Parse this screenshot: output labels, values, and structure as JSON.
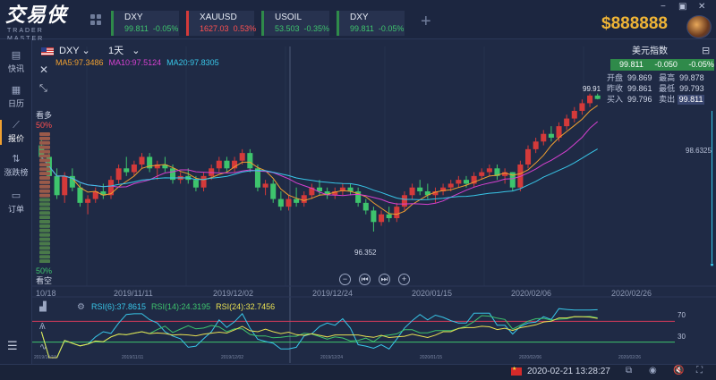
{
  "app": {
    "logo_cn": "交易侠",
    "logo_en": "TRADER MASTER",
    "balance": "$888888"
  },
  "tickers": [
    {
      "symbol": "DXY",
      "price": "99.811",
      "change": "-0.05%",
      "dir": "down_green"
    },
    {
      "symbol": "XAUUSD",
      "price": "1627.03",
      "change": "0.53%",
      "dir": "up_red"
    },
    {
      "symbol": "USOIL",
      "price": "53.503",
      "change": "-0.35%",
      "dir": "down_green"
    },
    {
      "symbol": "DXY",
      "price": "99.811",
      "change": "-0.05%",
      "dir": "down_green"
    }
  ],
  "window_controls": {
    "minimize": "−",
    "restore": "▣",
    "close": "✕"
  },
  "sidebar": {
    "items": [
      {
        "label": "快讯",
        "icon": "news-icon"
      },
      {
        "label": "日历",
        "icon": "calendar-icon"
      },
      {
        "label": "报价",
        "icon": "quotes-icon"
      },
      {
        "label": "涨跌榜",
        "icon": "ranking-icon"
      },
      {
        "label": "订单",
        "icon": "orders-icon"
      }
    ]
  },
  "chart_header": {
    "symbol": "DXY",
    "period": "1天",
    "ma5": "MA5:97.3486",
    "ma10": "MA10:97.5124",
    "ma20": "MA20:97.8305"
  },
  "sentiment": {
    "bull_label": "看多",
    "bull_pct": "50%",
    "bear_label": "看空",
    "bear_pct": "50%",
    "bull_value": 50,
    "bear_value": 50
  },
  "quote_panel": {
    "title": "美元指数",
    "bid": "99.811",
    "change": "-0.050",
    "change_pct": "-0.05%",
    "open_label": "开盘",
    "open": "99.869",
    "high_label": "最高",
    "high": "99.878",
    "prev_close_label": "昨收",
    "prev_close": "99.861",
    "low_label": "最低",
    "low": "99.793",
    "buy_label": "买入",
    "buy": "99.796",
    "sell_label": "卖出",
    "sell": "99.811"
  },
  "price_labels": {
    "last": "99.91",
    "right_axis": "98.6325",
    "low_marker": "96.352"
  },
  "date_axis": [
    "10/18",
    "2019/11/11",
    "2019/12/02",
    "2019/12/24",
    "2020/01/15",
    "2020/02/06",
    "2020/02/26"
  ],
  "rsi": {
    "rsi6": "RSI(6):37.8615",
    "rsi14": "RSI(14):24.3195",
    "rsi24": "RSI(24):32.7456",
    "upper": "70",
    "lower": "30"
  },
  "mini_dates": [
    "2019/10/18",
    "2019/11/11",
    "2019/12/02",
    "2019/12/24",
    "2020/01/15",
    "2020/02/06",
    "2020/02/26"
  ],
  "status": {
    "timestamp": "2020-02-21 13:28:27"
  },
  "colors": {
    "background": "#1f2a45",
    "up": "#d43a3a",
    "down": "#3ec46d",
    "ma5": "#f0a030",
    "ma10": "#d640d0",
    "ma20": "#38c6e8",
    "balance": "#f0b536"
  },
  "chart_data": {
    "type": "candlestick",
    "symbol": "DXY",
    "period": "1天",
    "yrange": [
      96.0,
      100.2
    ],
    "ohlc": [
      [
        98.6,
        98.8,
        98.2,
        98.3
      ],
      [
        98.3,
        98.4,
        97.7,
        97.8
      ],
      [
        97.8,
        98.0,
        97.2,
        97.3
      ],
      [
        97.3,
        97.9,
        97.1,
        97.8
      ],
      [
        97.8,
        98.0,
        97.4,
        97.5
      ],
      [
        97.5,
        97.6,
        97.0,
        97.1
      ],
      [
        97.1,
        97.3,
        96.8,
        97.2
      ],
      [
        97.2,
        97.5,
        97.1,
        97.4
      ],
      [
        97.4,
        97.6,
        97.2,
        97.3
      ],
      [
        97.3,
        97.8,
        97.2,
        97.7
      ],
      [
        97.7,
        98.1,
        97.6,
        98.0
      ],
      [
        98.0,
        98.3,
        97.8,
        97.9
      ],
      [
        97.9,
        98.2,
        97.8,
        98.1
      ],
      [
        98.1,
        98.4,
        98.0,
        98.3
      ],
      [
        98.3,
        98.4,
        97.9,
        98.0
      ],
      [
        98.0,
        98.2,
        97.7,
        98.1
      ],
      [
        98.1,
        98.3,
        97.9,
        98.0
      ],
      [
        98.0,
        98.1,
        97.6,
        97.7
      ],
      [
        97.7,
        97.9,
        97.6,
        97.8
      ],
      [
        97.8,
        98.0,
        97.6,
        97.7
      ],
      [
        97.7,
        97.8,
        97.4,
        97.5
      ],
      [
        97.5,
        97.9,
        97.4,
        97.8
      ],
      [
        97.8,
        98.1,
        97.7,
        98.0
      ],
      [
        98.0,
        98.3,
        97.9,
        98.2
      ],
      [
        98.2,
        98.3,
        97.9,
        98.0
      ],
      [
        98.0,
        98.3,
        97.9,
        98.2
      ],
      [
        98.2,
        98.5,
        98.1,
        98.4
      ],
      [
        98.4,
        98.5,
        97.9,
        98.0
      ],
      [
        98.0,
        98.1,
        97.4,
        97.5
      ],
      [
        97.5,
        97.7,
        97.3,
        97.6
      ],
      [
        97.6,
        97.7,
        97.1,
        97.2
      ],
      [
        97.2,
        97.4,
        96.9,
        97.0
      ],
      [
        97.0,
        97.3,
        96.9,
        97.2
      ],
      [
        97.2,
        97.5,
        97.0,
        97.1
      ],
      [
        97.1,
        97.4,
        97.0,
        97.3
      ],
      [
        97.3,
        97.6,
        97.2,
        97.5
      ],
      [
        97.5,
        97.7,
        97.3,
        97.4
      ],
      [
        97.4,
        97.5,
        97.2,
        97.3
      ],
      [
        97.3,
        97.5,
        97.2,
        97.4
      ],
      [
        97.4,
        97.6,
        97.3,
        97.5
      ],
      [
        97.5,
        97.6,
        97.3,
        97.4
      ],
      [
        97.4,
        97.5,
        97.0,
        97.1
      ],
      [
        97.1,
        97.2,
        96.8,
        96.9
      ],
      [
        96.9,
        97.0,
        96.35,
        96.6
      ],
      [
        96.6,
        96.9,
        96.5,
        96.8
      ],
      [
        96.8,
        97.0,
        96.6,
        96.7
      ],
      [
        96.7,
        97.1,
        96.6,
        97.0
      ],
      [
        97.0,
        97.4,
        96.9,
        97.3
      ],
      [
        97.3,
        97.6,
        97.2,
        97.5
      ],
      [
        97.5,
        97.7,
        97.3,
        97.4
      ],
      [
        97.4,
        97.6,
        97.2,
        97.3
      ],
      [
        97.3,
        97.5,
        97.1,
        97.4
      ],
      [
        97.4,
        97.6,
        97.3,
        97.5
      ],
      [
        97.5,
        97.7,
        97.4,
        97.6
      ],
      [
        97.6,
        97.8,
        97.5,
        97.7
      ],
      [
        97.7,
        97.8,
        97.5,
        97.6
      ],
      [
        97.6,
        97.9,
        97.5,
        97.8
      ],
      [
        97.8,
        98.0,
        97.7,
        97.9
      ],
      [
        97.9,
        98.1,
        97.8,
        98.0
      ],
      [
        98.0,
        98.1,
        97.7,
        97.8
      ],
      [
        97.8,
        98.0,
        97.6,
        97.9
      ],
      [
        97.9,
        97.9,
        97.4,
        97.5
      ],
      [
        97.5,
        98.2,
        97.4,
        98.1
      ],
      [
        98.1,
        98.6,
        98.0,
        98.5
      ],
      [
        98.5,
        98.8,
        98.4,
        98.7
      ],
      [
        98.7,
        99.0,
        98.6,
        98.9
      ],
      [
        98.9,
        99.1,
        98.7,
        98.8
      ],
      [
        98.8,
        99.2,
        98.7,
        99.1
      ],
      [
        99.1,
        99.4,
        99.0,
        99.3
      ],
      [
        99.3,
        99.6,
        99.2,
        99.5
      ],
      [
        99.5,
        99.8,
        99.4,
        99.7
      ],
      [
        99.7,
        99.95,
        99.6,
        99.9
      ],
      [
        99.9,
        99.95,
        99.8,
        99.81
      ]
    ],
    "ma5_value": 97.3486,
    "ma10_value": 97.5124,
    "ma20_value": 97.8305,
    "rsi_upper": 70,
    "rsi_lower": 30
  }
}
